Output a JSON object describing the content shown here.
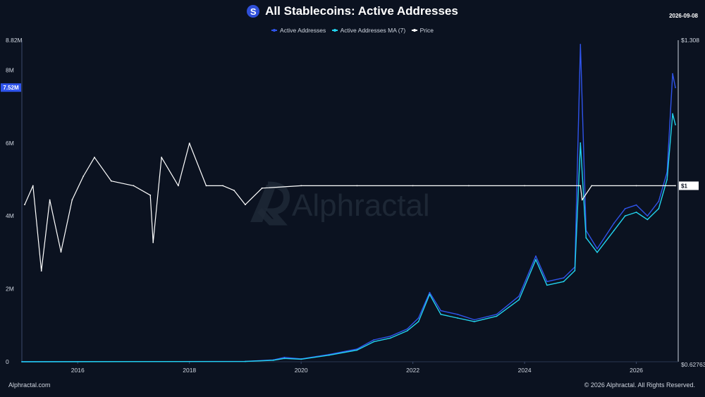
{
  "header": {
    "title": "All Stablecoins: Active Addresses",
    "logo_letter": "S",
    "date": "2026-09-08"
  },
  "watermark": "Alphractal",
  "footer": {
    "left": "Alphractal.com",
    "right": "© 2026 Alphractal. All Rights Reserved."
  },
  "legend": [
    {
      "label": "Active Addresses",
      "color": "#2f54eb"
    },
    {
      "label": "Active Addresses MA (7)",
      "color": "#22d3ee"
    },
    {
      "label": "Price",
      "color": "#ffffff"
    }
  ],
  "chart_data": {
    "type": "line",
    "title": "All Stablecoins: Active Addresses",
    "x_range": [
      2015.0,
      2026.75
    ],
    "x_ticks": [
      "2016",
      "2018",
      "2020",
      "2022",
      "2024",
      "2026"
    ],
    "left_axis": {
      "range": [
        0,
        8820000
      ],
      "ticks": [
        0,
        2000000,
        4000000,
        6000000,
        8000000,
        8820000
      ],
      "tick_labels": [
        "0",
        "2M",
        "4M",
        "6M",
        "8M",
        "8.82M"
      ],
      "current_value_label": "7.52M",
      "current_value": 7520000
    },
    "right_axis": {
      "range": [
        0.62763,
        1.308
      ],
      "tick_labels": [
        "$0.62763",
        "$1.308"
      ],
      "current_value_label": "$1",
      "current_value": 1.0
    },
    "grid": false,
    "series": [
      {
        "name": "Active Addresses",
        "axis": "left",
        "color": "#2f54eb",
        "x": [
          2015.0,
          2019.0,
          2019.5,
          2019.7,
          2020.0,
          2020.5,
          2021.0,
          2021.3,
          2021.6,
          2021.9,
          2022.1,
          2022.3,
          2022.5,
          2022.8,
          2023.1,
          2023.5,
          2023.9,
          2024.2,
          2024.4,
          2024.7,
          2024.9,
          2025.0,
          2025.1,
          2025.3,
          2025.6,
          2025.8,
          2026.0,
          2026.2,
          2026.4,
          2026.55,
          2026.65,
          2026.7
        ],
        "y": [
          0,
          10000,
          50000,
          120000,
          80000,
          200000,
          350000,
          600000,
          700000,
          900000,
          1200000,
          1900000,
          1400000,
          1300000,
          1150000,
          1300000,
          1800000,
          2900000,
          2200000,
          2300000,
          2600000,
          8700000,
          3600000,
          3100000,
          3800000,
          4200000,
          4300000,
          4000000,
          4400000,
          5200000,
          7900000,
          7520000
        ]
      },
      {
        "name": "Active Addresses MA (7)",
        "axis": "left",
        "color": "#22d3ee",
        "x": [
          2015.0,
          2019.0,
          2019.5,
          2019.7,
          2020.0,
          2020.5,
          2021.0,
          2021.3,
          2021.6,
          2021.9,
          2022.1,
          2022.3,
          2022.5,
          2022.8,
          2023.1,
          2023.5,
          2023.9,
          2024.2,
          2024.4,
          2024.7,
          2024.9,
          2025.0,
          2025.1,
          2025.3,
          2025.6,
          2025.8,
          2026.0,
          2026.2,
          2026.4,
          2026.55,
          2026.65,
          2026.7
        ],
        "y": [
          0,
          8000,
          40000,
          90000,
          70000,
          180000,
          320000,
          550000,
          650000,
          850000,
          1100000,
          1850000,
          1300000,
          1200000,
          1100000,
          1250000,
          1700000,
          2800000,
          2100000,
          2200000,
          2500000,
          6000000,
          3400000,
          3000000,
          3600000,
          4000000,
          4100000,
          3900000,
          4200000,
          5000000,
          6800000,
          6500000
        ]
      },
      {
        "name": "Price",
        "axis": "right",
        "color": "#ffffff",
        "x": [
          2015.05,
          2015.2,
          2015.35,
          2015.5,
          2015.7,
          2015.9,
          2016.1,
          2016.3,
          2016.6,
          2017.0,
          2017.3,
          2017.35,
          2017.5,
          2017.8,
          2018.0,
          2018.3,
          2018.6,
          2018.8,
          2019.0,
          2019.3,
          2020.0,
          2021.0,
          2022.0,
          2023.0,
          2024.0,
          2025.0,
          2025.03,
          2025.2,
          2026.0,
          2026.7
        ],
        "y": [
          0.96,
          1.0,
          0.82,
          0.97,
          0.86,
          0.97,
          1.02,
          1.06,
          1.01,
          1.0,
          0.98,
          0.88,
          1.06,
          1.0,
          1.09,
          1.0,
          1.0,
          0.99,
          0.96,
          0.995,
          1.0,
          1.0,
          1.0,
          1.0,
          1.0,
          1.0,
          0.97,
          1.0,
          1.0,
          1.0
        ]
      }
    ]
  }
}
